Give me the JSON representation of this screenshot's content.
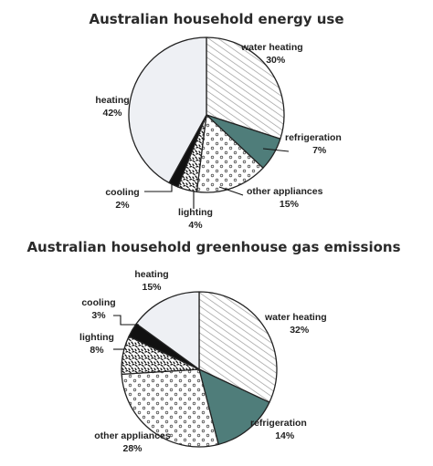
{
  "chart_data": [
    {
      "type": "pie",
      "title": "Australian household energy use",
      "unit": "%",
      "slices": [
        {
          "label": "water heating",
          "value": 30,
          "value_label": "30%",
          "fill": "hatch"
        },
        {
          "label": "refrigeration",
          "value": 7,
          "value_label": "7%",
          "fill": "teal"
        },
        {
          "label": "other appliances",
          "value": 15,
          "value_label": "15%",
          "fill": "dots"
        },
        {
          "label": "lighting",
          "value": 4,
          "value_label": "4%",
          "fill": "squiggle"
        },
        {
          "label": "cooling",
          "value": 2,
          "value_label": "2%",
          "fill": "black"
        },
        {
          "label": "heating",
          "value": 42,
          "value_label": "42%",
          "fill": "light"
        }
      ]
    },
    {
      "type": "pie",
      "title": "Australian household greenhouse gas emissions",
      "unit": "%",
      "slices": [
        {
          "label": "water heating",
          "value": 32,
          "value_label": "32%",
          "fill": "hatch"
        },
        {
          "label": "refrigeration",
          "value": 14,
          "value_label": "14%",
          "fill": "teal"
        },
        {
          "label": "other appliances",
          "value": 28,
          "value_label": "28%",
          "fill": "dots"
        },
        {
          "label": "lighting",
          "value": 8,
          "value_label": "8%",
          "fill": "squiggle"
        },
        {
          "label": "cooling",
          "value": 3,
          "value_label": "3%",
          "fill": "black"
        },
        {
          "label": "heating",
          "value": 15,
          "value_label": "15%",
          "fill": "light"
        }
      ]
    }
  ],
  "colors": {
    "teal": "#4f7d7a",
    "light": "#eef0f4",
    "outline": "#222222",
    "hatch_line": "#9a9a9a",
    "dot": "#555555"
  }
}
